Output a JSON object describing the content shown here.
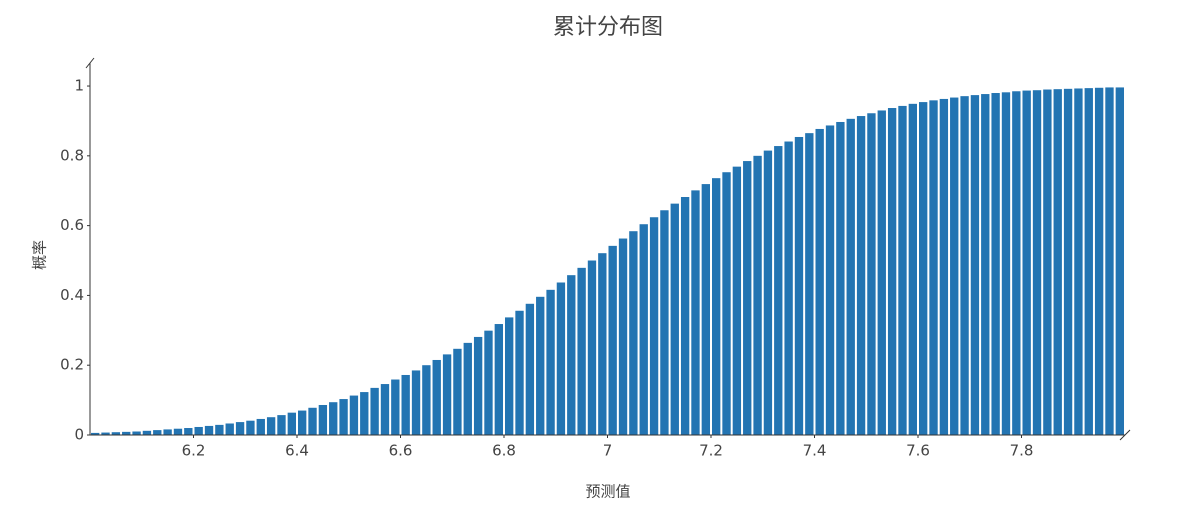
{
  "chart_data": {
    "type": "histogram",
    "title": "累计分布图",
    "xlabel": "预测值",
    "ylabel": "概率",
    "color": "#2374b2",
    "grid": false,
    "bins": [
      6.0,
      6.02,
      6.04,
      6.06,
      6.08,
      6.1,
      6.12,
      6.14,
      6.16,
      6.18,
      6.2,
      6.22,
      6.24,
      6.26,
      6.28,
      6.3,
      6.32,
      6.34,
      6.36,
      6.38,
      6.4,
      6.42,
      6.44,
      6.46,
      6.48,
      6.5,
      6.52,
      6.54,
      6.56,
      6.58,
      6.6,
      6.62,
      6.64,
      6.66,
      6.68,
      6.7,
      6.72,
      6.74,
      6.76,
      6.78,
      6.8,
      6.82,
      6.84,
      6.86,
      6.88,
      6.9,
      6.92,
      6.94,
      6.96,
      6.98,
      7.0,
      7.02,
      7.04,
      7.06,
      7.08,
      7.1,
      7.12,
      7.14,
      7.16,
      7.18,
      7.2,
      7.22,
      7.24,
      7.26,
      7.28,
      7.3,
      7.32,
      7.34,
      7.36,
      7.38,
      7.4,
      7.42,
      7.44,
      7.46,
      7.48,
      7.5,
      7.52,
      7.54,
      7.56,
      7.58,
      7.6,
      7.62,
      7.64,
      7.66,
      7.68,
      7.7,
      7.72,
      7.74,
      7.76,
      7.78,
      7.8,
      7.82,
      7.84,
      7.86,
      7.88,
      7.9,
      7.92,
      7.94,
      7.96,
      7.98,
      8.0
    ],
    "values": [
      0.006,
      0.007,
      0.008,
      0.009,
      0.01,
      0.012,
      0.014,
      0.016,
      0.018,
      0.02,
      0.023,
      0.026,
      0.029,
      0.033,
      0.037,
      0.041,
      0.046,
      0.051,
      0.057,
      0.064,
      0.07,
      0.078,
      0.086,
      0.094,
      0.103,
      0.113,
      0.123,
      0.135,
      0.146,
      0.159,
      0.172,
      0.185,
      0.2,
      0.215,
      0.231,
      0.247,
      0.264,
      0.281,
      0.299,
      0.318,
      0.337,
      0.356,
      0.376,
      0.396,
      0.416,
      0.437,
      0.458,
      0.479,
      0.5,
      0.521,
      0.542,
      0.563,
      0.584,
      0.604,
      0.624,
      0.644,
      0.663,
      0.682,
      0.701,
      0.719,
      0.736,
      0.753,
      0.769,
      0.785,
      0.8,
      0.815,
      0.828,
      0.841,
      0.854,
      0.865,
      0.877,
      0.887,
      0.897,
      0.906,
      0.914,
      0.922,
      0.93,
      0.937,
      0.943,
      0.949,
      0.954,
      0.959,
      0.963,
      0.967,
      0.971,
      0.974,
      0.977,
      0.98,
      0.982,
      0.985,
      0.987,
      0.988,
      0.99,
      0.991,
      0.992,
      0.993,
      0.994,
      0.995,
      0.996,
      0.996
    ],
    "xlim": [
      6.0,
      8.0
    ],
    "xticks": [
      6.2,
      6.4,
      6.6,
      6.8,
      7,
      7.2,
      7.4,
      7.6,
      7.8
    ],
    "ylim": [
      0,
      1.066
    ],
    "yticks": [
      0,
      0.2,
      0.4,
      0.6,
      0.8,
      1
    ]
  }
}
